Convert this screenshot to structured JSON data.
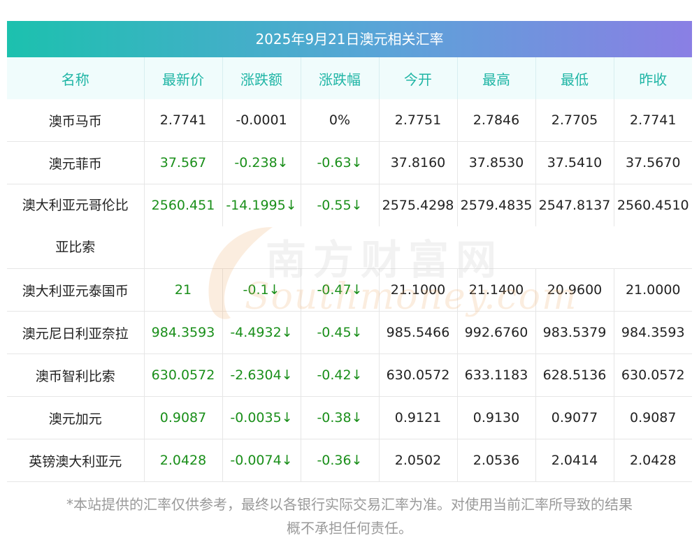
{
  "title": "2025年9月21日澳元相关汇率",
  "columns": [
    "名称",
    "最新价",
    "涨跌额",
    "涨跌幅",
    "今开",
    "最高",
    "最低",
    "昨收"
  ],
  "rows": [
    {
      "name": "澳币马币",
      "name2": "",
      "latest": "2.7741",
      "change": "-0.0001",
      "pct": "0%",
      "open": "2.7751",
      "high": "2.7846",
      "low": "2.7705",
      "prev": "2.7741",
      "down": false
    },
    {
      "name": "澳元菲币",
      "name2": "",
      "latest": "37.567",
      "change": "-0.238↓",
      "pct": "-0.63↓",
      "open": "37.8160",
      "high": "37.8530",
      "low": "37.5410",
      "prev": "37.5670",
      "down": true
    },
    {
      "name": "澳大利亚元哥伦比",
      "name2": "亚比索",
      "latest": "2560.451",
      "change": "-14.1995↓",
      "pct": "-0.55↓",
      "open": "2575.4298",
      "high": "2579.4835",
      "low": "2547.8137",
      "prev": "2560.4510",
      "down": true
    },
    {
      "name": "澳大利亚元泰国币",
      "name2": "",
      "latest": "21",
      "change": "-0.1↓",
      "pct": "-0.47↓",
      "open": "21.1000",
      "high": "21.1400",
      "low": "20.9600",
      "prev": "21.0000",
      "down": true
    },
    {
      "name": "澳元尼日利亚奈拉",
      "name2": "",
      "latest": "984.3593",
      "change": "-4.4932↓",
      "pct": "-0.45↓",
      "open": "985.5466",
      "high": "992.6760",
      "low": "983.5379",
      "prev": "984.3593",
      "down": true
    },
    {
      "name": "澳币智利比索",
      "name2": "",
      "latest": "630.0572",
      "change": "-2.6304↓",
      "pct": "-0.42↓",
      "open": "630.0572",
      "high": "633.1183",
      "low": "628.5136",
      "prev": "630.0572",
      "down": true
    },
    {
      "name": "澳元加元",
      "name2": "",
      "latest": "0.9087",
      "change": "-0.0035↓",
      "pct": "-0.38↓",
      "open": "0.9121",
      "high": "0.9130",
      "low": "0.9077",
      "prev": "0.9087",
      "down": true
    },
    {
      "name": "英镑澳大利亚元",
      "name2": "",
      "latest": "2.0428",
      "change": "-0.0074↓",
      "pct": "-0.36↓",
      "open": "2.0502",
      "high": "2.0536",
      "low": "2.0414",
      "prev": "2.0428",
      "down": true
    }
  ],
  "watermark": {
    "cn": "南方财富网",
    "en": "Southmoney.com"
  },
  "footnote_line1": "*本站提供的汇率仅供参考，最终以各银行实际交易汇率为准。对使用当前汇率所导致的结果",
  "footnote_line2": "概不承担任何责任。",
  "colors": {
    "header_text": "#1fb5a5",
    "header_bg": "#f0fcfc",
    "down": "#1a8f1a",
    "title_gradient_start": "#1cc1ae",
    "title_gradient_end": "#8a7fe4"
  }
}
